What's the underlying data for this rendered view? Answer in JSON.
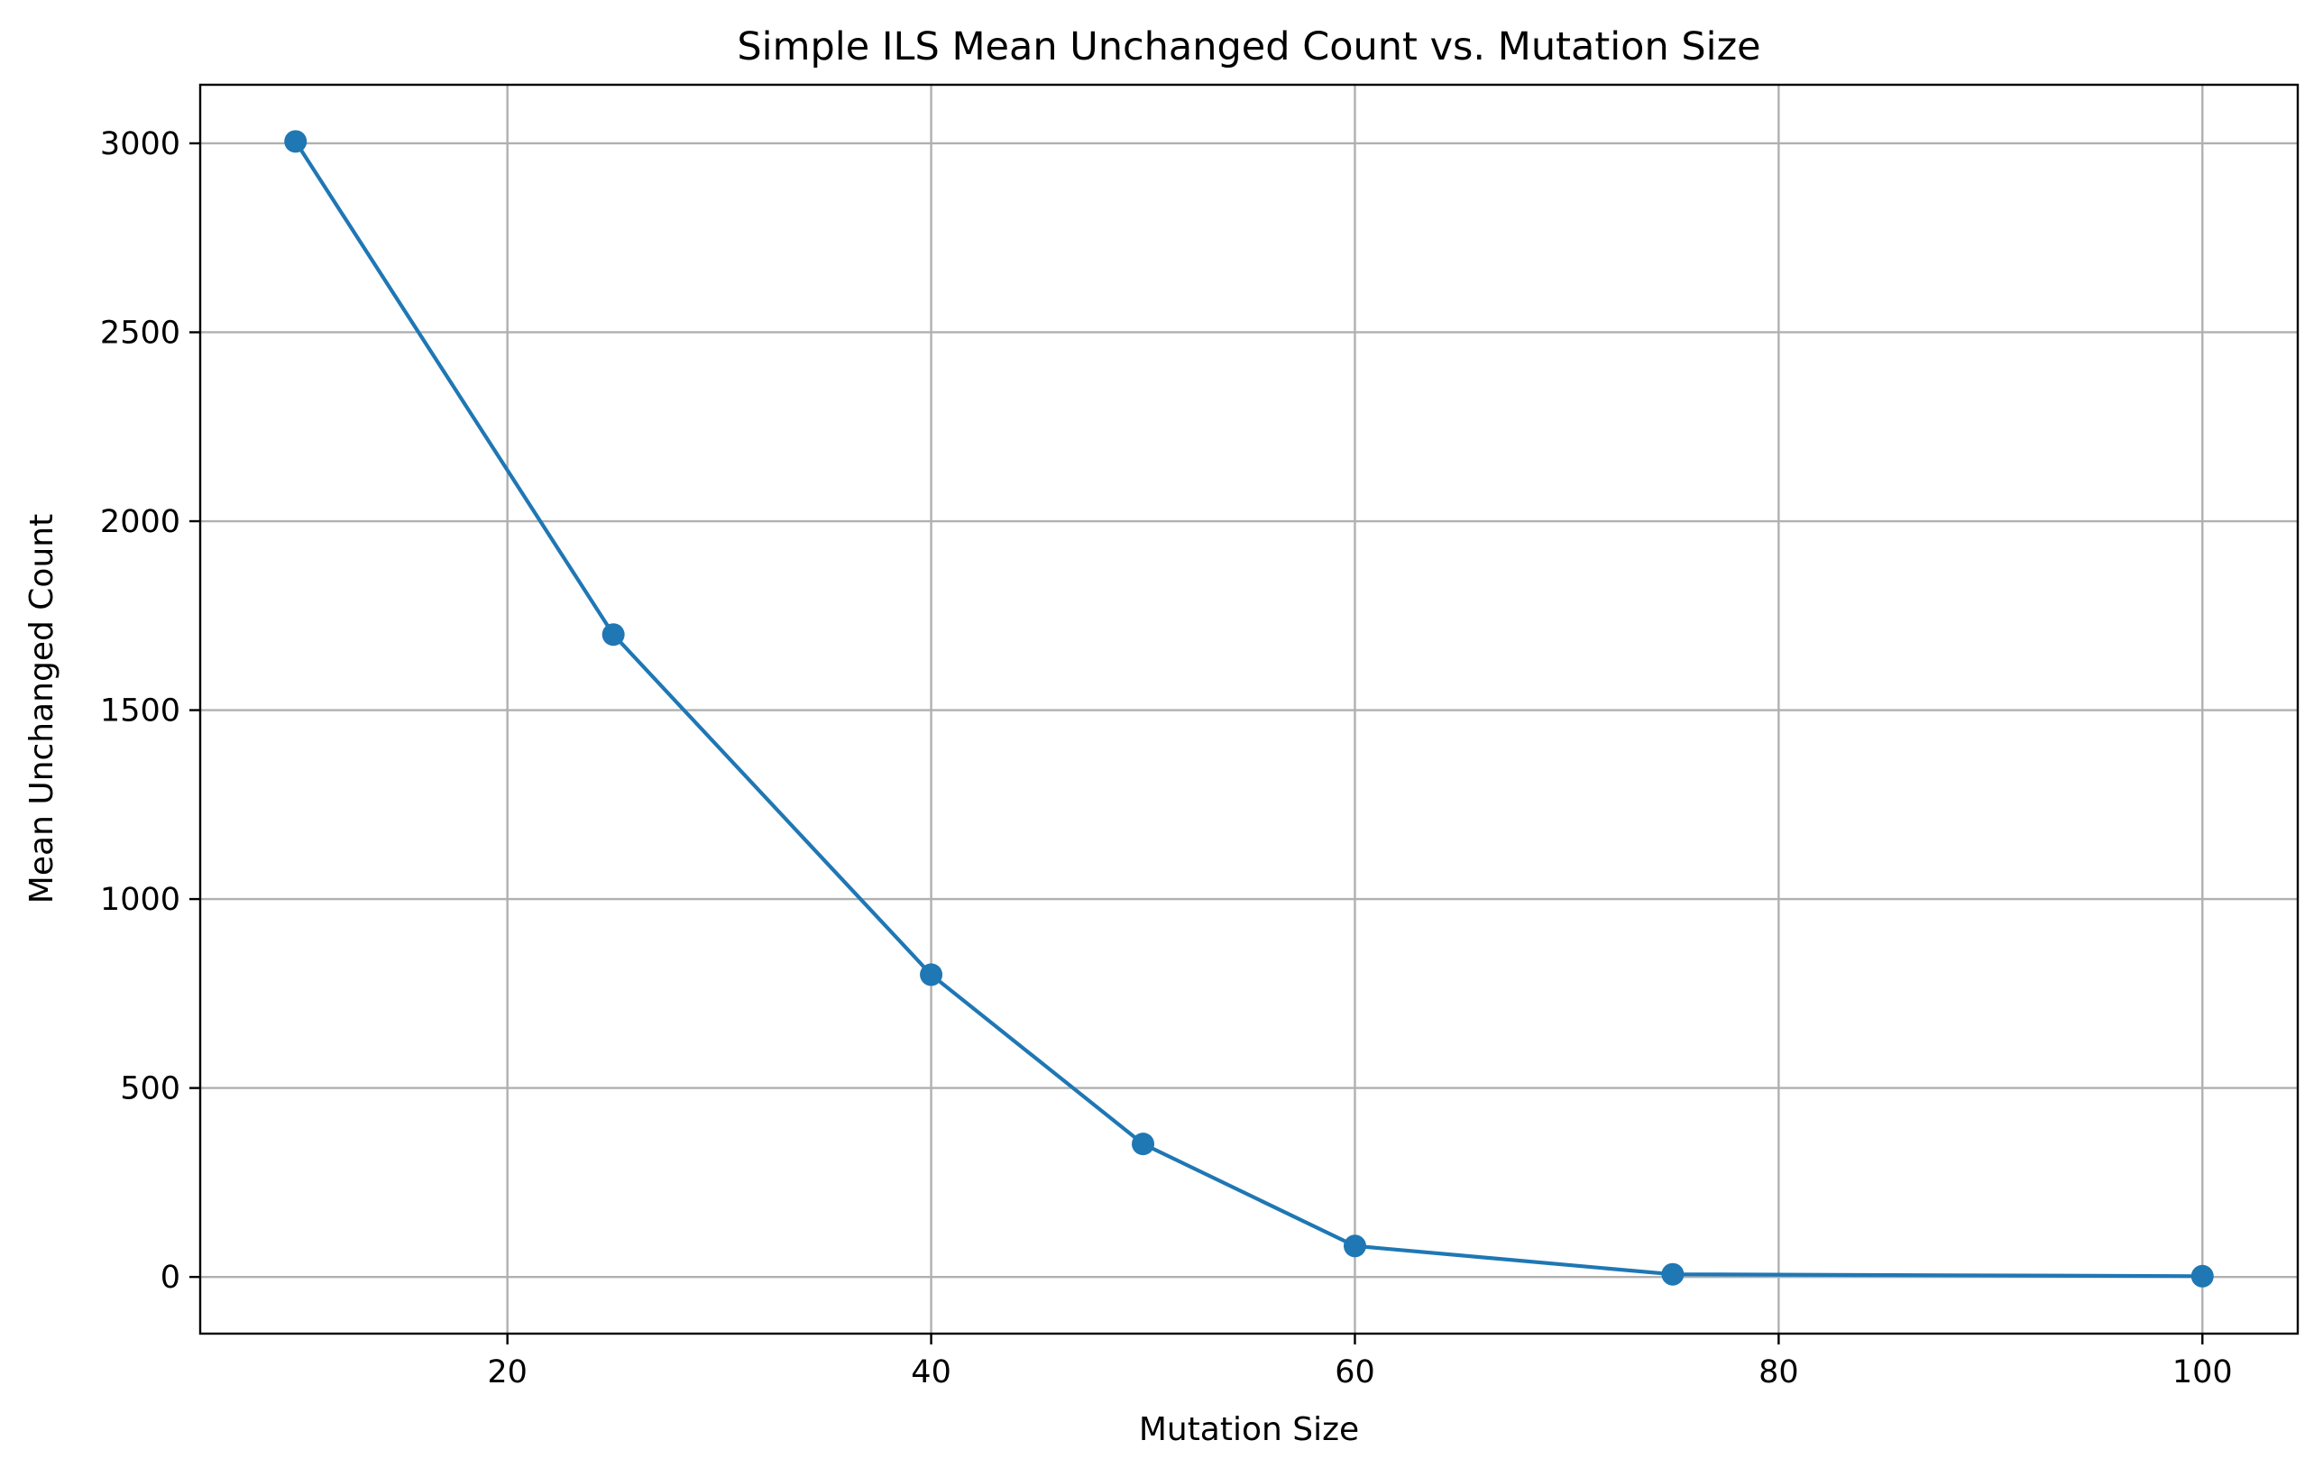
{
  "chart_data": {
    "type": "line",
    "title": "Simple ILS Mean Unchanged Count vs. Mutation Size",
    "xlabel": "Mutation Size",
    "ylabel": "Mean Unchanged Count",
    "x": [
      10,
      25,
      40,
      50,
      60,
      75,
      100
    ],
    "series": [
      {
        "values": [
          3005,
          1700,
          800,
          352,
          82,
          7,
          2
        ],
        "color": "#1f77b4",
        "marker": "circle"
      }
    ],
    "xlim": [
      5.5,
      104.5
    ],
    "ylim": [
      -150,
      3155
    ],
    "xticks": [
      20,
      40,
      60,
      80,
      100
    ],
    "yticks": [
      0,
      500,
      1000,
      1500,
      2000,
      2500,
      3000
    ],
    "grid": true,
    "legend": "none"
  }
}
